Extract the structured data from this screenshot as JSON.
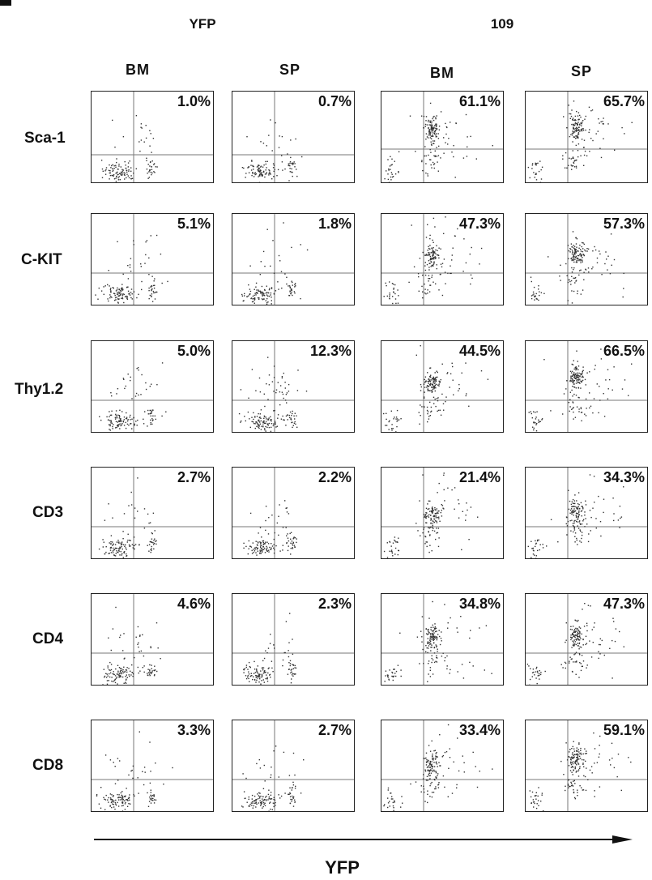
{
  "chart_data": {
    "type": "scatter",
    "title": "",
    "xlabel": "YFP",
    "ylabel": "",
    "group_labels": [
      "YFP",
      "109"
    ],
    "column_labels": [
      "BM",
      "SP",
      "BM",
      "SP"
    ],
    "row_labels": [
      "Sca-1",
      "C-KIT",
      "Thy1.2",
      "CD3",
      "CD4",
      "CD8"
    ],
    "panels": [
      {
        "row": "Sca-1",
        "group": "YFP",
        "tissue": "BM",
        "percent": "1.0%"
      },
      {
        "row": "Sca-1",
        "group": "YFP",
        "tissue": "SP",
        "percent": "0.7%"
      },
      {
        "row": "Sca-1",
        "group": "109",
        "tissue": "BM",
        "percent": "61.1%"
      },
      {
        "row": "Sca-1",
        "group": "109",
        "tissue": "SP",
        "percent": "65.7%"
      },
      {
        "row": "C-KIT",
        "group": "YFP",
        "tissue": "BM",
        "percent": "5.1%"
      },
      {
        "row": "C-KIT",
        "group": "YFP",
        "tissue": "SP",
        "percent": "1.8%"
      },
      {
        "row": "C-KIT",
        "group": "109",
        "tissue": "BM",
        "percent": "47.3%"
      },
      {
        "row": "C-KIT",
        "group": "109",
        "tissue": "SP",
        "percent": "57.3%"
      },
      {
        "row": "Thy1.2",
        "group": "YFP",
        "tissue": "BM",
        "percent": "5.0%"
      },
      {
        "row": "Thy1.2",
        "group": "YFP",
        "tissue": "SP",
        "percent": "12.3%"
      },
      {
        "row": "Thy1.2",
        "group": "109",
        "tissue": "BM",
        "percent": "44.5%"
      },
      {
        "row": "Thy1.2",
        "group": "109",
        "tissue": "SP",
        "percent": "66.5%"
      },
      {
        "row": "CD3",
        "group": "YFP",
        "tissue": "BM",
        "percent": "2.7%"
      },
      {
        "row": "CD3",
        "group": "YFP",
        "tissue": "SP",
        "percent": "2.2%"
      },
      {
        "row": "CD3",
        "group": "109",
        "tissue": "BM",
        "percent": "21.4%"
      },
      {
        "row": "CD3",
        "group": "109",
        "tissue": "SP",
        "percent": "34.3%"
      },
      {
        "row": "CD4",
        "group": "YFP",
        "tissue": "BM",
        "percent": "4.6%"
      },
      {
        "row": "CD4",
        "group": "YFP",
        "tissue": "SP",
        "percent": "2.3%"
      },
      {
        "row": "CD4",
        "group": "109",
        "tissue": "BM",
        "percent": "34.8%"
      },
      {
        "row": "CD4",
        "group": "109",
        "tissue": "SP",
        "percent": "47.3%"
      },
      {
        "row": "CD8",
        "group": "YFP",
        "tissue": "BM",
        "percent": "3.3%"
      },
      {
        "row": "CD8",
        "group": "YFP",
        "tissue": "SP",
        "percent": "2.7%"
      },
      {
        "row": "CD8",
        "group": "109",
        "tissue": "BM",
        "percent": "33.4%"
      },
      {
        "row": "CD8",
        "group": "109",
        "tissue": "SP",
        "percent": "59.1%"
      }
    ]
  },
  "colors": {
    "dots": "#333333",
    "gate_lines": "#777777",
    "frame": "#222222"
  }
}
